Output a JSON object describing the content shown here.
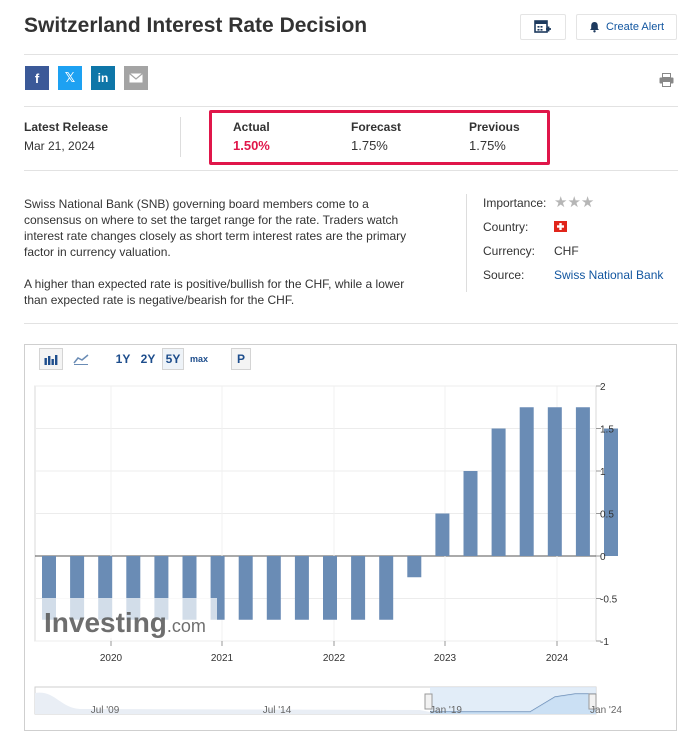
{
  "page": {
    "title": "Switzerland Interest Rate Decision",
    "alert_label": "Create Alert"
  },
  "share": {
    "facebook": "f",
    "twitter": "𝕏",
    "linkedin": "in",
    "icons": [
      "facebook-icon",
      "twitter-icon",
      "linkedin-icon",
      "email-icon",
      "printer-icon"
    ]
  },
  "release": {
    "latest_label": "Latest Release",
    "latest_date": "Mar 21, 2024",
    "actual_label": "Actual",
    "actual_value": "1.50%",
    "forecast_label": "Forecast",
    "forecast_value": "1.75%",
    "previous_label": "Previous",
    "previous_value": "1.75%"
  },
  "description": {
    "p1": "Swiss National Bank (SNB) governing board members come to a consensus on where to set the target range for the rate. Traders watch interest rate changes closely as short term interest rates are the primary factor in currency valuation.",
    "p2": "A higher than expected rate is positive/bullish for the CHF, while a lower than expected rate is negative/bearish for the CHF."
  },
  "meta": {
    "importance_label": "Importance:",
    "importance_stars": 3,
    "country_label": "Country:",
    "currency_label": "Currency:",
    "currency_value": "CHF",
    "source_label": "Source:",
    "source_value": "Swiss National Bank"
  },
  "chart_toolbar": {
    "ranges": [
      "1Y",
      "2Y",
      "5Y",
      "max"
    ],
    "selected_range": "5Y",
    "p_label": "P"
  },
  "chart_data": {
    "type": "bar",
    "values": [
      -0.75,
      -0.75,
      -0.75,
      -0.75,
      -0.75,
      -0.75,
      -0.75,
      -0.75,
      -0.75,
      -0.75,
      -0.75,
      -0.75,
      -0.75,
      -0.25,
      0.5,
      1.0,
      1.5,
      1.75,
      1.75,
      1.75,
      1.5
    ],
    "x_tick_labels": [
      "2020",
      "2021",
      "2022",
      "2023",
      "2024"
    ],
    "y_tick_labels": [
      "2",
      "1.5",
      "1",
      "0.5",
      "0",
      "-0.5",
      "-1"
    ],
    "ylim": [
      -1,
      2
    ],
    "bar_color": "#6a8cb5",
    "watermark": "Investing.com",
    "navigator_labels": [
      "Jul '09",
      "Jul '14",
      "Jan '19",
      "Jan '24"
    ]
  }
}
